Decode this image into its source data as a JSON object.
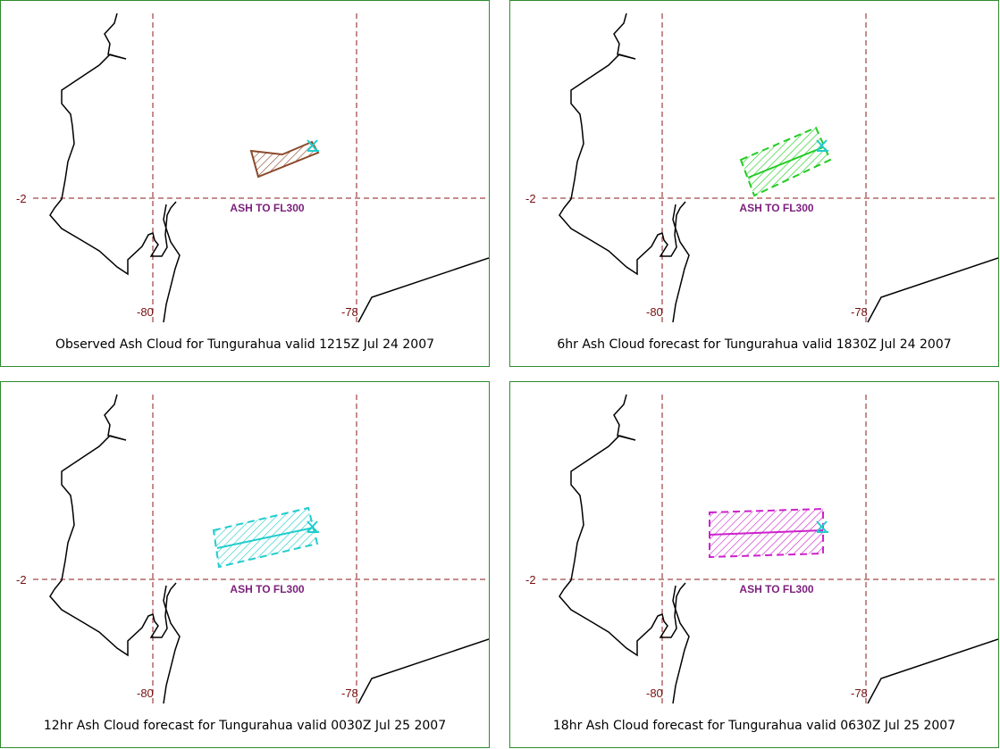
{
  "grid": {
    "lat_label": "-2",
    "lon_labels": [
      "-80",
      "-78"
    ],
    "color": "#7a1010"
  },
  "panels": [
    {
      "caption": "Observed Ash Cloud for Tungurahua valid 1215Z Jul 24 2007",
      "ash_label": "ASH TO FL300",
      "color": "#8b4a2b",
      "kind": "observed"
    },
    {
      "caption": "6hr Ash Cloud forecast for Tungurahua valid 1830Z Jul 24 2007",
      "ash_label": "ASH TO FL300",
      "color": "#22cc22",
      "kind": "forecast"
    },
    {
      "caption": "12hr Ash Cloud forecast for Tungurahua valid 0030Z Jul 25 2007",
      "ash_label": "ASH TO FL300",
      "color": "#22cccc",
      "kind": "forecast"
    },
    {
      "caption": "18hr Ash Cloud forecast for Tungurahua valid 0630Z Jul 25 2007",
      "ash_label": "ASH TO FL300",
      "color": "#cc22cc",
      "kind": "forecast"
    }
  ],
  "volcano_marker_color": "#22cccc",
  "ash_label_color": "#7b1f7b",
  "border_color": "#2e8b2e"
}
